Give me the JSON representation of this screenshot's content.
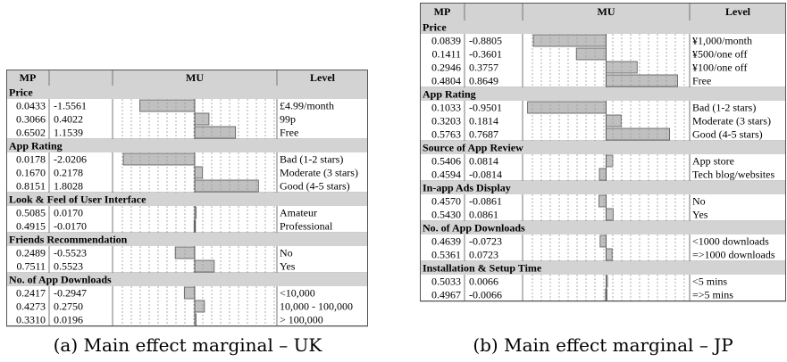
{
  "headers": {
    "mp": "MP",
    "mu": "MU",
    "level": "Level"
  },
  "panels": [
    {
      "caption": "(a) Main effect marginal – UK",
      "groups": [
        {
          "name": "Price",
          "rows": [
            {
              "mp": "0.0433",
              "mu": "-1.5561",
              "level": "£4.99/month"
            },
            {
              "mp": "0.3066",
              "mu": "0.4022",
              "level": "99p"
            },
            {
              "mp": "0.6502",
              "mu": "1.1539",
              "level": "Free"
            }
          ]
        },
        {
          "name": "App Rating",
          "rows": [
            {
              "mp": "0.0178",
              "mu": "-2.0206",
              "level": "Bad (1-2 stars)"
            },
            {
              "mp": "0.1670",
              "mu": "0.2178",
              "level": "Moderate (3 stars)"
            },
            {
              "mp": "0.8151",
              "mu": "1.8028",
              "level": "Good (4-5 stars)"
            }
          ]
        },
        {
          "name": "Look & Feel of User Interface",
          "rows": [
            {
              "mp": "0.5085",
              "mu": "0.0170",
              "level": "Amateur"
            },
            {
              "mp": "0.4915",
              "mu": "-0.0170",
              "level": "Professional"
            }
          ]
        },
        {
          "name": "Friends Recommendation",
          "rows": [
            {
              "mp": "0.2489",
              "mu": "-0.5523",
              "level": "No"
            },
            {
              "mp": "0.7511",
              "mu": "0.5523",
              "level": "Yes"
            }
          ]
        },
        {
          "name": "No. of App Downloads",
          "rows": [
            {
              "mp": "0.2417",
              "mu": "-0.2947",
              "level": "<10,000"
            },
            {
              "mp": "0.4273",
              "mu": "0.2750",
              "level": "10,000 - 100,000"
            },
            {
              "mp": "0.3310",
              "mu": "0.0196",
              "level": "> 100,000"
            }
          ]
        }
      ]
    },
    {
      "caption": "(b) Main effect marginal – JP",
      "groups": [
        {
          "name": "Price",
          "rows": [
            {
              "mp": "0.0839",
              "mu": "-0.8805",
              "level": "¥1,000/month"
            },
            {
              "mp": "0.1411",
              "mu": "-0.3601",
              "level": "¥500/one off"
            },
            {
              "mp": "0.2946",
              "mu": "0.3757",
              "level": "¥100/one off"
            },
            {
              "mp": "0.4804",
              "mu": "0.8649",
              "level": "Free"
            }
          ]
        },
        {
          "name": "App Rating",
          "rows": [
            {
              "mp": "0.1033",
              "mu": "-0.9501",
              "level": "Bad (1-2 stars)"
            },
            {
              "mp": "0.3203",
              "mu": "0.1814",
              "level": "Moderate (3 stars)"
            },
            {
              "mp": "0.5763",
              "mu": "0.7687",
              "level": "Good (4-5 stars)"
            }
          ]
        },
        {
          "name": "Source of App Review",
          "rows": [
            {
              "mp": "0.5406",
              "mu": "0.0814",
              "level": "App store"
            },
            {
              "mp": "0.4594",
              "mu": "-0.0814",
              "level": "Tech blog/websites"
            }
          ]
        },
        {
          "name": "In-app Ads Display",
          "rows": [
            {
              "mp": "0.4570",
              "mu": "-0.0861",
              "level": "No"
            },
            {
              "mp": "0.5430",
              "mu": "0.0861",
              "level": "Yes"
            }
          ]
        },
        {
          "name": "No. of App Downloads",
          "rows": [
            {
              "mp": "0.4639",
              "mu": "-0.0723",
              "level": "<1000 downloads"
            },
            {
              "mp": "0.5361",
              "mu": "0.0723",
              "level": "=>1000 downloads"
            }
          ]
        },
        {
          "name": "Installation & Setup Time",
          "rows": [
            {
              "mp": "0.5033",
              "mu": "0.0066",
              "level": "<5 mins"
            },
            {
              "mp": "0.4967",
              "mu": "-0.0066",
              "level": "=>5 mins"
            }
          ]
        }
      ]
    }
  ],
  "chart_data": [
    {
      "type": "bar",
      "title": "(a) Main effect marginal – UK",
      "categories": [
        "£4.99/month",
        "99p",
        "Free",
        "Bad (1-2 stars)",
        "Moderate (3 stars)",
        "Good (4-5 stars)",
        "Amateur",
        "Professional",
        "No",
        "Yes",
        "<10,000",
        "10,000 - 100,000",
        "> 100,000"
      ],
      "series": [
        {
          "name": "MU",
          "values": [
            -1.5561,
            0.4022,
            1.1539,
            -2.0206,
            0.2178,
            1.8028,
            0.017,
            -0.017,
            -0.5523,
            0.5523,
            -0.2947,
            0.275,
            0.0196
          ]
        }
      ],
      "xlim": [
        -2.3,
        2.3
      ],
      "colors": {
        "bar": "#c0c0c0",
        "header": "#d3d3d3",
        "grid": "#9a9a9a"
      }
    },
    {
      "type": "bar",
      "title": "(b) Main effect marginal – JP",
      "categories": [
        "¥1,000/month",
        "¥500/one off",
        "¥100/one off",
        "Free",
        "Bad (1-2 stars)",
        "Moderate (3 stars)",
        "Good (4-5 stars)",
        "App store",
        "Tech blog/websites",
        "No",
        "Yes",
        "<1000 downloads",
        "=>1000 downloads",
        "<5 mins",
        "=>5 mins"
      ],
      "series": [
        {
          "name": "MU",
          "values": [
            -0.8805,
            -0.3601,
            0.3757,
            0.8649,
            -0.9501,
            0.1814,
            0.7687,
            0.0814,
            -0.0814,
            -0.0861,
            0.0861,
            -0.0723,
            0.0723,
            0.0066,
            -0.0066
          ]
        }
      ],
      "xlim": [
        -1.0,
        1.0
      ],
      "colors": {
        "bar": "#c0c0c0",
        "header": "#d3d3d3",
        "grid": "#9a9a9a"
      }
    }
  ]
}
